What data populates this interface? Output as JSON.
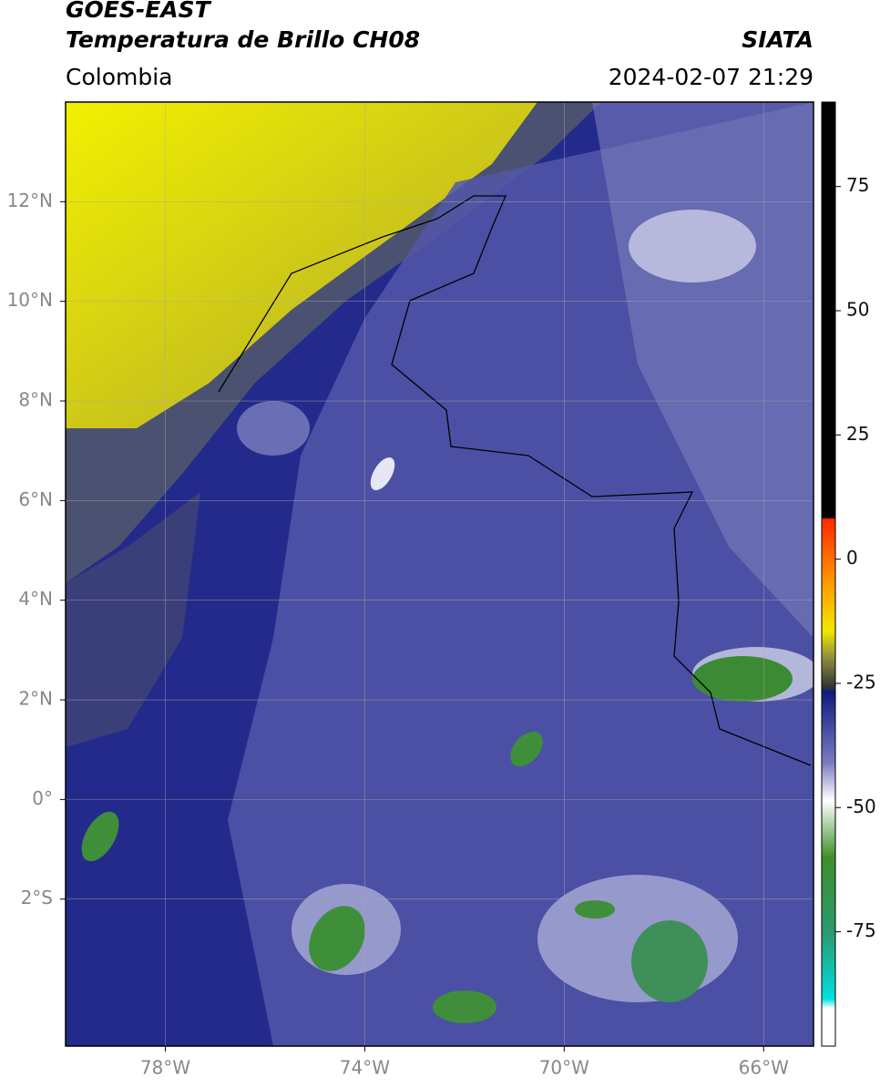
{
  "header": {
    "title": "GOES-EAST",
    "subtitle": "Temperatura de Brillo CH08",
    "source": "SIATA",
    "region": "Colombia",
    "datetime": "2024-02-07 21:29"
  },
  "map": {
    "xlim": [
      -80,
      -65
    ],
    "ylim": [
      -4.95,
      14
    ],
    "xticks": [
      {
        "value": -78,
        "label": "78°W"
      },
      {
        "value": -74,
        "label": "74°W"
      },
      {
        "value": -70,
        "label": "70°W"
      },
      {
        "value": -66,
        "label": "66°W"
      }
    ],
    "yticks": [
      {
        "value": 12,
        "label": "12°N"
      },
      {
        "value": 10,
        "label": "10°N"
      },
      {
        "value": 8,
        "label": "8°N"
      },
      {
        "value": 6,
        "label": "6°N"
      },
      {
        "value": 4,
        "label": "4°N"
      },
      {
        "value": 2,
        "label": "2°N"
      },
      {
        "value": 0,
        "label": "0°"
      },
      {
        "value": -2,
        "label": "2°S"
      }
    ],
    "grid": true
  },
  "colorbar": {
    "lim": [
      -98,
      92
    ],
    "ticks": [
      75,
      50,
      25,
      0,
      -25,
      -50,
      -75
    ]
  }
}
